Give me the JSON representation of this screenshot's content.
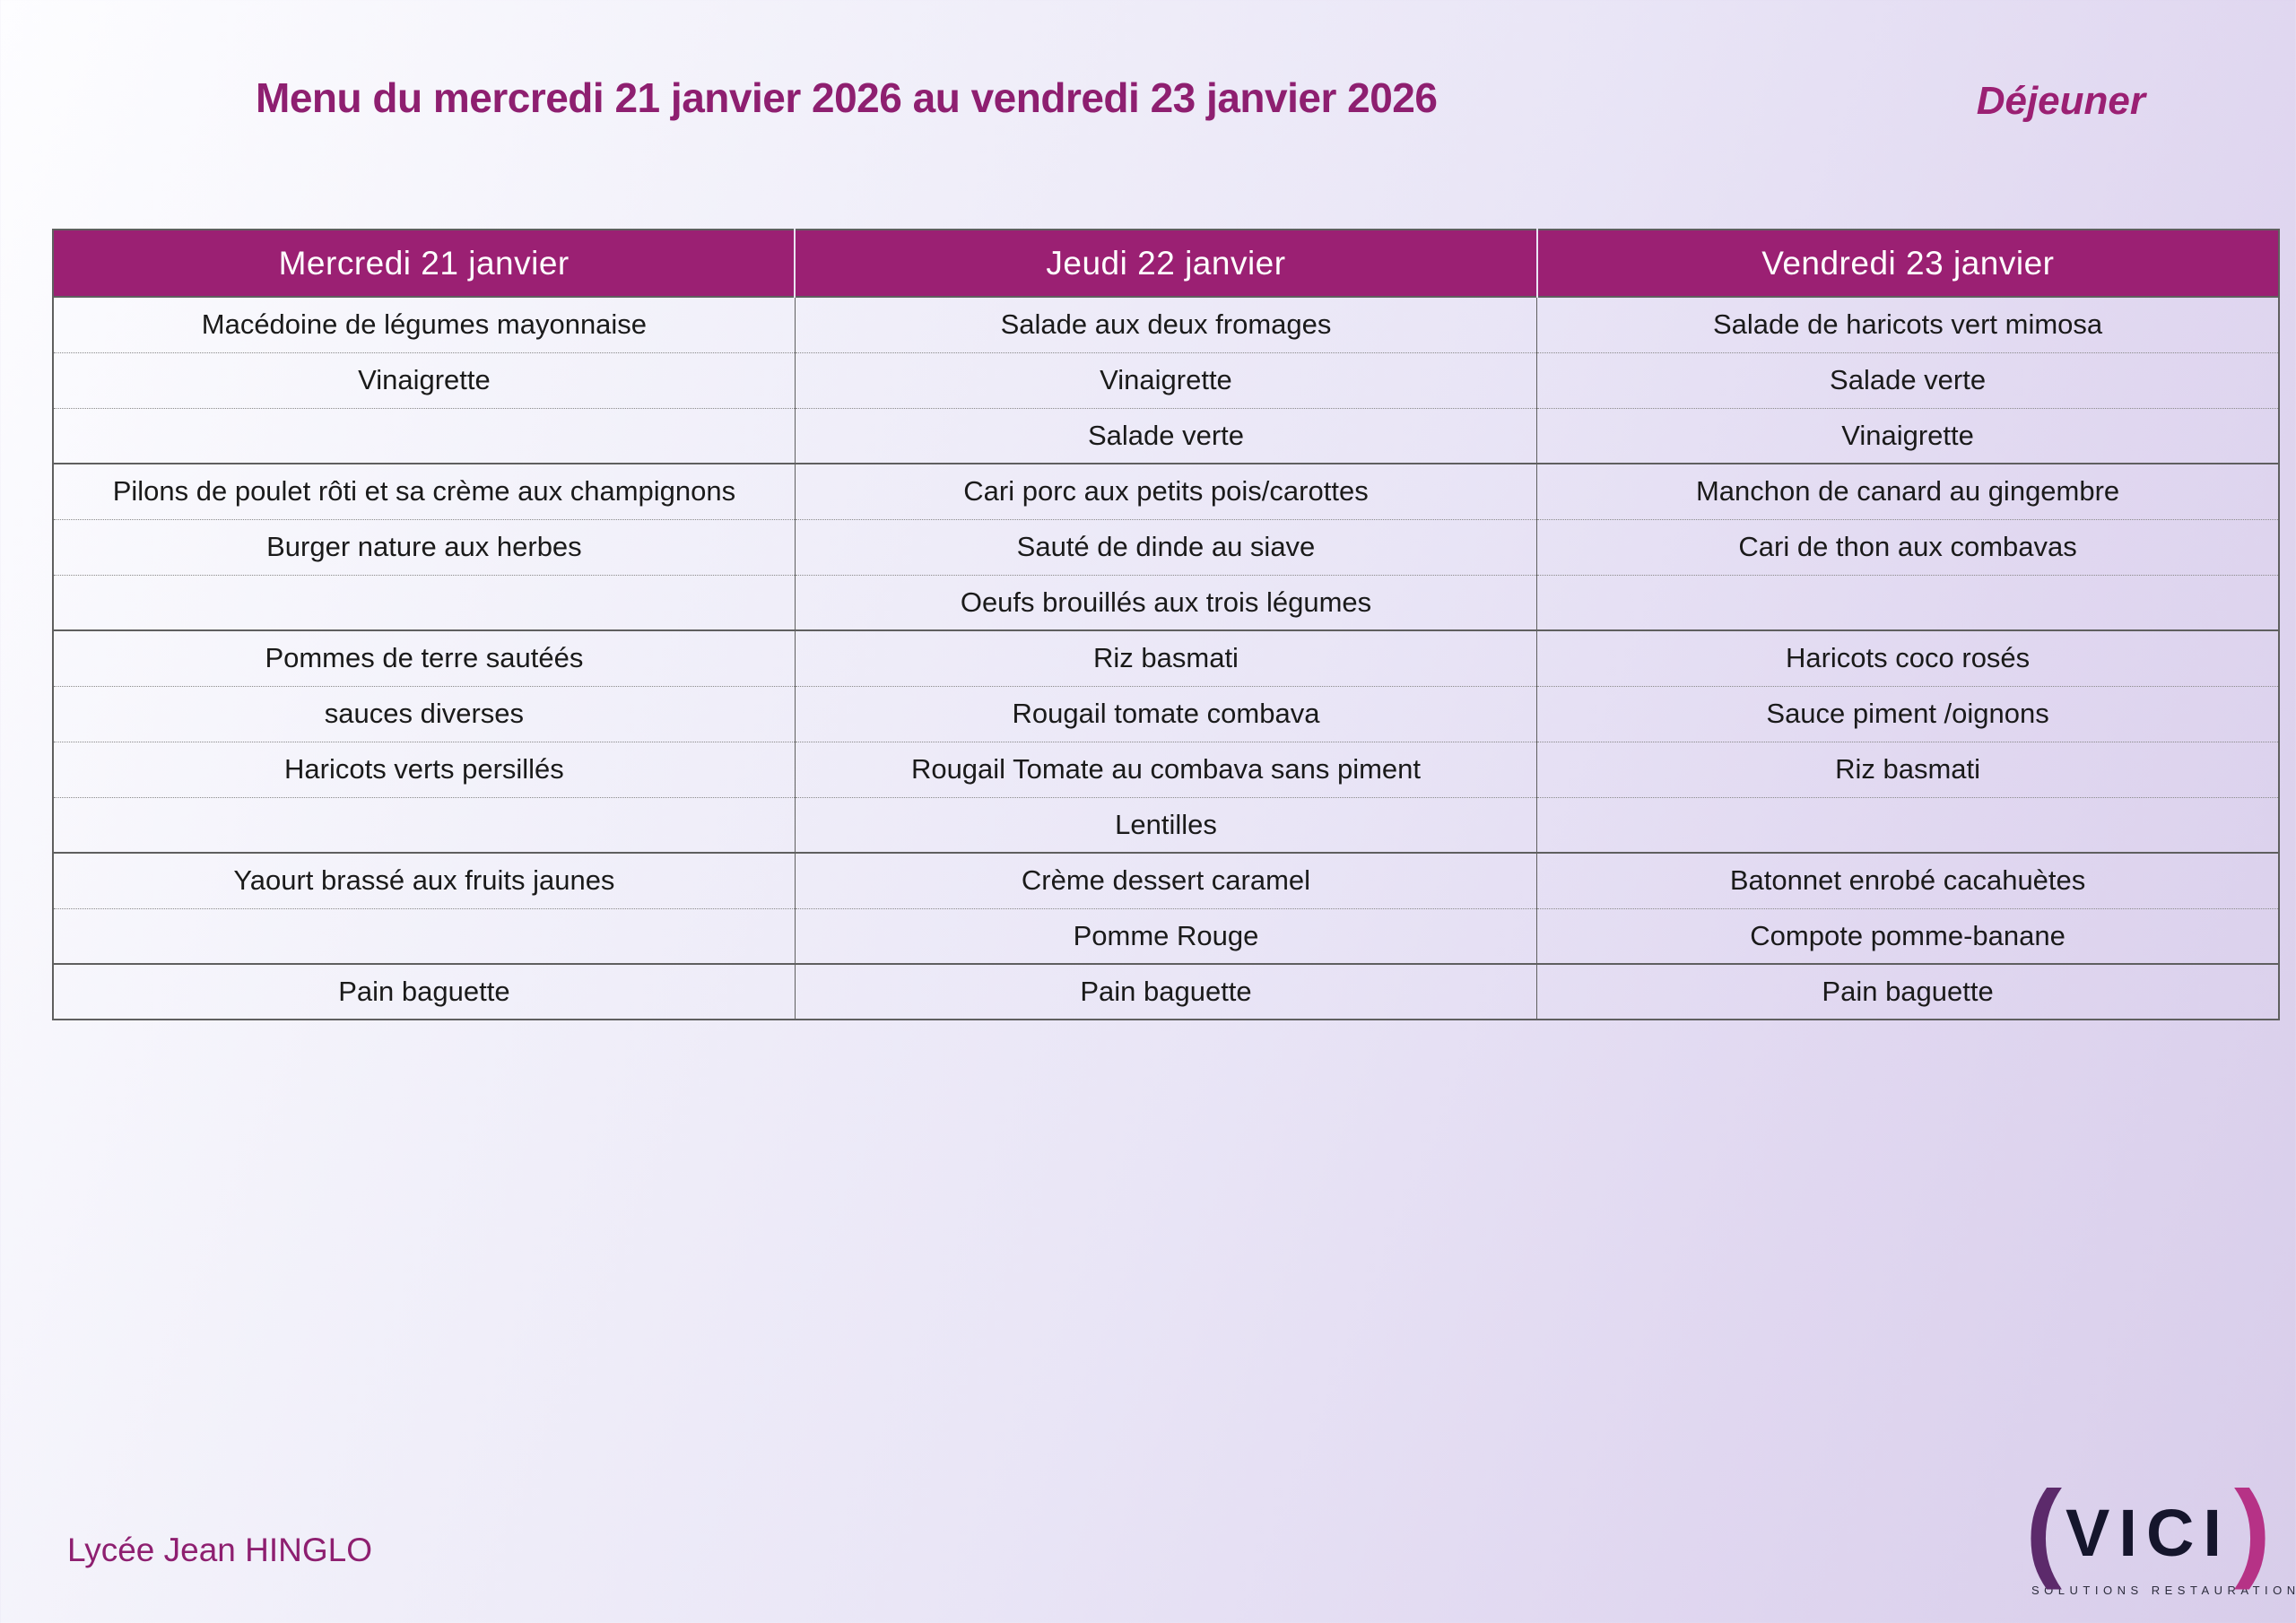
{
  "page": {
    "title": "Menu du mercredi 21 janvier 2026 au vendredi 23 janvier 2026",
    "meal": "Déjeuner",
    "school": "Lycée Jean HINGLO"
  },
  "colors": {
    "accent_magenta": "#9B2073",
    "title_text": "#8E1F70",
    "header_bg": "#9B2073",
    "header_text": "#FFFFFF",
    "cell_text": "#1A1A1A",
    "background_start": "#FDFDFF",
    "background_end": "#D8CDEA",
    "logo_paren_left": "#5C2A6B",
    "logo_paren_right": "#B63286",
    "logo_word": "#15152C"
  },
  "logo": {
    "left_paren": "(",
    "word": "VICI",
    "right_paren": ")",
    "tagline": "SOLUTIONS RESTAURATION"
  },
  "table": {
    "headers": [
      "Mercredi 21 janvier",
      "Jeudi 22 janvier",
      "Vendredi 23 janvier"
    ],
    "sections": [
      {
        "name": "entrees",
        "rows": [
          [
            "Macédoine de légumes mayonnaise",
            "Salade aux deux fromages",
            "Salade de haricots vert mimosa"
          ],
          [
            "Vinaigrette",
            "Vinaigrette",
            "Salade verte"
          ],
          [
            "",
            "Salade verte",
            "Vinaigrette"
          ]
        ]
      },
      {
        "name": "plats",
        "rows": [
          [
            "Pilons de poulet rôti et sa crème aux champignons",
            "Cari porc aux petits pois/carottes",
            "Manchon de canard au gingembre"
          ],
          [
            "Burger nature aux herbes",
            "Sauté de dinde au siave",
            "Cari de thon aux combavas"
          ],
          [
            "",
            "Oeufs brouillés aux trois légumes",
            ""
          ]
        ]
      },
      {
        "name": "accompagnements",
        "rows": [
          [
            "Pommes de terre sautéés",
            "Riz basmati",
            "Haricots coco rosés"
          ],
          [
            "sauces diverses",
            "Rougail tomate combava",
            "Sauce piment /oignons"
          ],
          [
            "Haricots verts persillés",
            "Rougail Tomate au combava sans piment",
            "Riz basmati"
          ],
          [
            "",
            "Lentilles",
            ""
          ]
        ]
      },
      {
        "name": "desserts",
        "rows": [
          [
            "Yaourt brassé aux fruits jaunes",
            "Crème dessert caramel",
            "Batonnet enrobé cacahuètes"
          ],
          [
            "",
            "Pomme Rouge",
            "Compote pomme-banane"
          ]
        ]
      },
      {
        "name": "pain",
        "rows": [
          [
            "Pain baguette",
            "Pain baguette",
            "Pain baguette"
          ]
        ]
      }
    ]
  }
}
